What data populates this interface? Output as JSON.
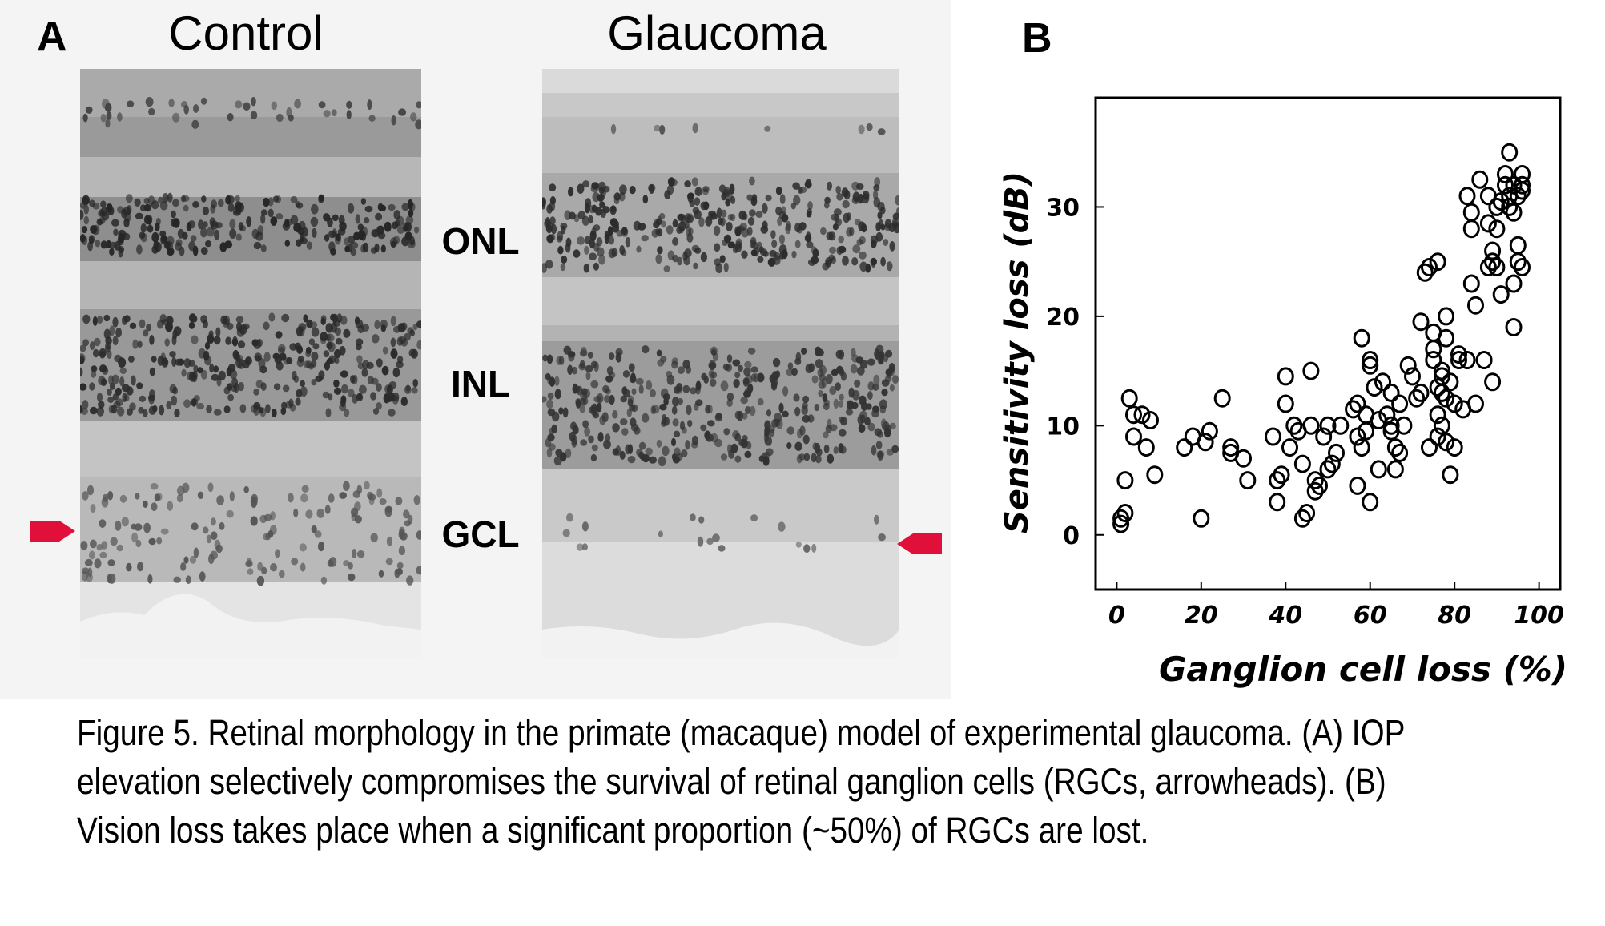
{
  "panel_a": {
    "letter": "A",
    "control_title": "Control",
    "glaucoma_title": "Glaucoma",
    "layers": {
      "onl": "ONL",
      "inl": "INL",
      "gcl": "GCL"
    },
    "arrow_color": "#e0103a"
  },
  "panel_b": {
    "letter": "B"
  },
  "chart_data": {
    "type": "scatter",
    "title": "",
    "xlabel": "Ganglion cell loss (%)",
    "ylabel": "Sensitivity loss (dB)",
    "xlim": [
      -5,
      105
    ],
    "ylim": [
      -5,
      40
    ],
    "xticks": [
      0,
      20,
      40,
      60,
      80,
      100
    ],
    "yticks": [
      0,
      10,
      20,
      30
    ],
    "marker": "open-circle",
    "points": [
      [
        1,
        1
      ],
      [
        1,
        1.5
      ],
      [
        2,
        2
      ],
      [
        2,
        5
      ],
      [
        3,
        12.5
      ],
      [
        4,
        9
      ],
      [
        4,
        11
      ],
      [
        6,
        11
      ],
      [
        7,
        8
      ],
      [
        8,
        10.5
      ],
      [
        9,
        5.5
      ],
      [
        16,
        8
      ],
      [
        18,
        9
      ],
      [
        20,
        1.5
      ],
      [
        21,
        8.5
      ],
      [
        22,
        9.5
      ],
      [
        25,
        12.5
      ],
      [
        27,
        8
      ],
      [
        27,
        7.5
      ],
      [
        30,
        7
      ],
      [
        31,
        5
      ],
      [
        37,
        9
      ],
      [
        38,
        5
      ],
      [
        38,
        3
      ],
      [
        39,
        5.5
      ],
      [
        40,
        14.5
      ],
      [
        40,
        12
      ],
      [
        41,
        8
      ],
      [
        42,
        10
      ],
      [
        43,
        9.5
      ],
      [
        44,
        6.5
      ],
      [
        44,
        1.5
      ],
      [
        45,
        2
      ],
      [
        46,
        10
      ],
      [
        46,
        15
      ],
      [
        47,
        5
      ],
      [
        47,
        4
      ],
      [
        48,
        4.5
      ],
      [
        49,
        9
      ],
      [
        50,
        10
      ],
      [
        50,
        6
      ],
      [
        51,
        6.5
      ],
      [
        52,
        7.5
      ],
      [
        53,
        10
      ],
      [
        56,
        11.5
      ],
      [
        57,
        12
      ],
      [
        57,
        4.5
      ],
      [
        57,
        9
      ],
      [
        58,
        18
      ],
      [
        58,
        8
      ],
      [
        59,
        9.5
      ],
      [
        59,
        11
      ],
      [
        60,
        16
      ],
      [
        60,
        3
      ],
      [
        60,
        15.5
      ],
      [
        61,
        13.5
      ],
      [
        62,
        6
      ],
      [
        62,
        10.5
      ],
      [
        63,
        14
      ],
      [
        64,
        11
      ],
      [
        65,
        10
      ],
      [
        65,
        9.5
      ],
      [
        65,
        13
      ],
      [
        66,
        6
      ],
      [
        66,
        8
      ],
      [
        67,
        7.5
      ],
      [
        67,
        12
      ],
      [
        68,
        10
      ],
      [
        69,
        15.5
      ],
      [
        70,
        14.5
      ],
      [
        71,
        12.5
      ],
      [
        72,
        19.5
      ],
      [
        72,
        13
      ],
      [
        73,
        24
      ],
      [
        74,
        24.5
      ],
      [
        74,
        8
      ],
      [
        75,
        16
      ],
      [
        75,
        17
      ],
      [
        75,
        18.5
      ],
      [
        76,
        25
      ],
      [
        76,
        13.5
      ],
      [
        76,
        11
      ],
      [
        76,
        9
      ],
      [
        77,
        14.5
      ],
      [
        77,
        15
      ],
      [
        77,
        13
      ],
      [
        77,
        10
      ],
      [
        78,
        12.5
      ],
      [
        78,
        18
      ],
      [
        78,
        20
      ],
      [
        78,
        8.5
      ],
      [
        79,
        14
      ],
      [
        79,
        5.5
      ],
      [
        80,
        12
      ],
      [
        80,
        8
      ],
      [
        81,
        16.5
      ],
      [
        81,
        16
      ],
      [
        82,
        11.5
      ],
      [
        83,
        31
      ],
      [
        83,
        16
      ],
      [
        84,
        29.5
      ],
      [
        84,
        28
      ],
      [
        84,
        23
      ],
      [
        85,
        21
      ],
      [
        85,
        12
      ],
      [
        86,
        32.5
      ],
      [
        87,
        16
      ],
      [
        88,
        31
      ],
      [
        88,
        28.5
      ],
      [
        88,
        24.5
      ],
      [
        89,
        26
      ],
      [
        89,
        14
      ],
      [
        89,
        25
      ],
      [
        90,
        30
      ],
      [
        90,
        28
      ],
      [
        90,
        24.5
      ],
      [
        91,
        30.5
      ],
      [
        91,
        22
      ],
      [
        92,
        32
      ],
      [
        92,
        33
      ],
      [
        93,
        31
      ],
      [
        93,
        30
      ],
      [
        93,
        35
      ],
      [
        94,
        32
      ],
      [
        94,
        29.5
      ],
      [
        94,
        23
      ],
      [
        94,
        19
      ],
      [
        95,
        31
      ],
      [
        95,
        26.5
      ],
      [
        95,
        25
      ],
      [
        96,
        33
      ],
      [
        96,
        24.5
      ],
      [
        96,
        32
      ],
      [
        96,
        31.5
      ]
    ]
  },
  "caption": {
    "text": "Figure 5. Retinal morphology in the primate (macaque) model of experimental glaucoma. (A) IOP elevation selectively compromises the survival of retinal ganglion cells (RGCs, arrowheads). (B) Vision loss takes place when a significant proportion (~50%) of RGCs are lost."
  }
}
